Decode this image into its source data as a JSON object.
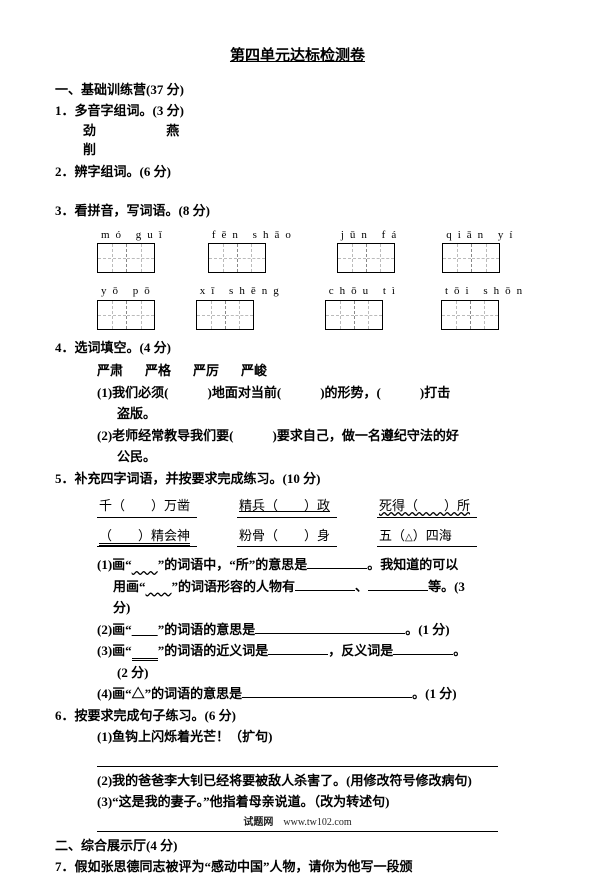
{
  "title": "第四单元达标检测卷",
  "s1": {
    "heading": "一、基础训练营(37 分)",
    "q1": {
      "text": "1．多音字组词。(3 分)",
      "chars": [
        "劲",
        "燕",
        "削"
      ]
    },
    "q2": "2．辨字组词。(6 分)",
    "q3": {
      "text": "3．看拼音，写词语。(8 分)",
      "row1": [
        {
          "py": "mó  guǐ",
          "cells": 2
        },
        {
          "py": "fēn  shāo",
          "cells": 2
        },
        {
          "py": "jūn  fá",
          "cells": 2
        },
        {
          "py": "qiān  yí",
          "cells": 2
        }
      ],
      "row2": [
        {
          "py": "yō  pō",
          "cells": 2
        },
        {
          "py": "xī  shēng",
          "cells": 2
        },
        {
          "py": "chōu  tì",
          "cells": 2
        },
        {
          "py": "tōi  shōn",
          "cells": 2
        }
      ]
    },
    "q4": {
      "text": "4．选词填空。(4 分)",
      "words": [
        "严肃",
        "严格",
        "严厉",
        "严峻"
      ],
      "i1a": "(1)我们必须(",
      "i1b": ")地面对当前(",
      "i1c": ")的形势，(",
      "i1d": ")打击",
      "i1e": "盗版。",
      "i2a": "(2)老师经常教导我们要(",
      "i2b": ")要求自己，做一名遵纪守法的好",
      "i2c": "公民。"
    },
    "q5": {
      "text": "5．补充四字词语，并按要求完成练习。(10 分)",
      "row1": [
        "千（　　）万凿",
        "精兵（　　）政",
        "死得（　　）所"
      ],
      "row2": [
        "（　　）精会神",
        "粉骨（　　）身",
        "五（　　）四海"
      ],
      "s1a": "(1)画“",
      "s1b": "”的词语中，“所”的意思是",
      "s1c": "。我知道的可以",
      "s1d": "用画“",
      "s1e": "”的词语形容的人物有",
      "s1f": "、",
      "s1g": "等。(3",
      "s1h": "分)",
      "s2a": "(2)画“",
      "s2b": "”的词语的意思是",
      "s2c": "。(1 分)",
      "s3a": "(3)画“",
      "s3b": "”的词语的近义词是",
      "s3c": "，反义词是",
      "s3d": "。",
      "s3e": "(2 分)",
      "s4a": "(4)画“△”的词语的意思是",
      "s4b": "。(1 分)"
    },
    "q6": {
      "text": "6．按要求完成句子练习。(6 分)",
      "i1": "(1)鱼钩上闪烁着光芒！（扩句)",
      "i2": "(2)我的爸爸李大钊已经将要被敌人杀害了。(用修改符号修改病句)",
      "i3": "(3)“这是我的妻子。”他指着母亲说道。（改为转述句)"
    }
  },
  "s2": {
    "heading": "二、综合展示厅(4 分)",
    "q7": "7．假如张思德同志被评为“感动中国”人物，请你为他写一段颁"
  },
  "footer_a": "试题网",
  "footer_b": "www.tw102.com"
}
